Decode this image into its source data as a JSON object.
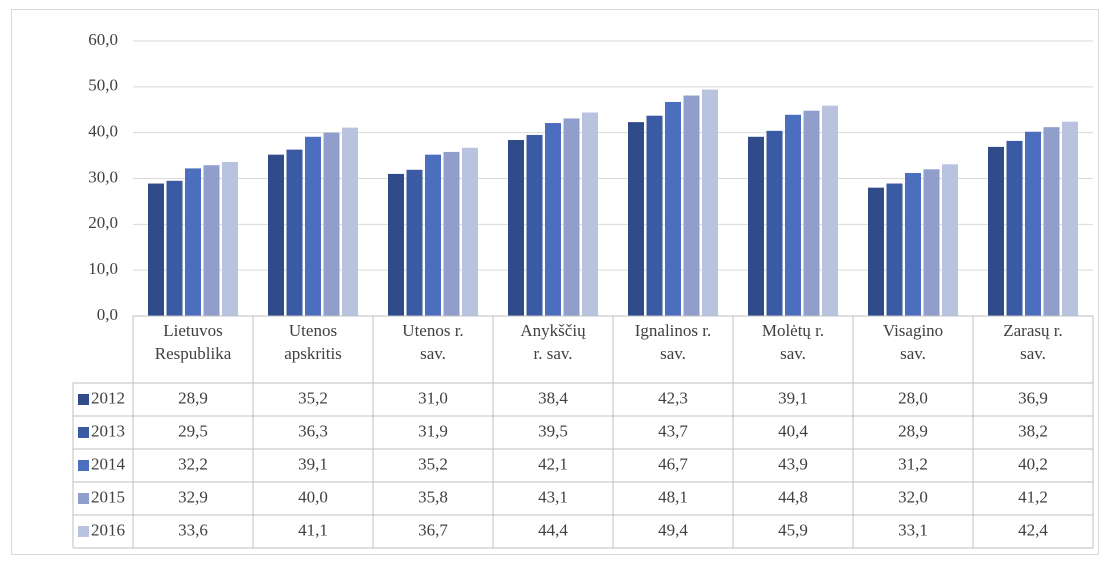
{
  "chart_data": {
    "type": "bar",
    "categories": [
      [
        "Lietuvos",
        "Respublika"
      ],
      [
        "Utenos",
        "apskritis"
      ],
      [
        "Utenos r.",
        "sav."
      ],
      [
        "Anykščių",
        "r. sav."
      ],
      [
        "Ignalinos r.",
        "sav."
      ],
      [
        "Molėtų r.",
        "sav."
      ],
      [
        "Visagino",
        "sav."
      ],
      [
        "Zarasų r.",
        "sav."
      ]
    ],
    "series": [
      {
        "name": "2012",
        "color": "#2f4b8a",
        "values": [
          28.9,
          35.2,
          31.0,
          38.4,
          42.3,
          39.1,
          28.0,
          36.9
        ],
        "value_labels": [
          "28,9",
          "35,2",
          "31,0",
          "38,4",
          "42,3",
          "39,1",
          "28,0",
          "36,9"
        ]
      },
      {
        "name": "2013",
        "color": "#3a5aa3",
        "values": [
          29.5,
          36.3,
          31.9,
          39.5,
          43.7,
          40.4,
          28.9,
          38.2
        ],
        "value_labels": [
          "29,5",
          "36,3",
          "31,9",
          "39,5",
          "43,7",
          "40,4",
          "28,9",
          "38,2"
        ]
      },
      {
        "name": "2014",
        "color": "#4b6ebf",
        "values": [
          32.2,
          39.1,
          35.2,
          42.1,
          46.7,
          43.9,
          31.2,
          40.2
        ],
        "value_labels": [
          "32,2",
          "39,1",
          "35,2",
          "42,1",
          "46,7",
          "43,9",
          "31,2",
          "40,2"
        ]
      },
      {
        "name": "2015",
        "color": "#8f9ecb",
        "values": [
          32.9,
          40.0,
          35.8,
          43.1,
          48.1,
          44.8,
          32.0,
          41.2
        ],
        "value_labels": [
          "32,9",
          "40,0",
          "35,8",
          "43,1",
          "48,1",
          "44,8",
          "32,0",
          "41,2"
        ]
      },
      {
        "name": "2016",
        "color": "#b9c2df",
        "values": [
          33.6,
          41.1,
          36.7,
          44.4,
          49.4,
          45.9,
          33.1,
          42.4
        ],
        "value_labels": [
          "33,6",
          "41,1",
          "36,7",
          "44,4",
          "49,4",
          "45,9",
          "33,1",
          "42,4"
        ]
      }
    ],
    "ylim": [
      0,
      60
    ],
    "yticks": [
      {
        "value": 0,
        "label": "0,0"
      },
      {
        "value": 10,
        "label": "10,0"
      },
      {
        "value": 20,
        "label": "20,0"
      },
      {
        "value": 30,
        "label": "30,0"
      },
      {
        "value": 40,
        "label": "40,0"
      },
      {
        "value": 50,
        "label": "50,0"
      },
      {
        "value": 60,
        "label": "60,0"
      }
    ],
    "grid": true
  }
}
